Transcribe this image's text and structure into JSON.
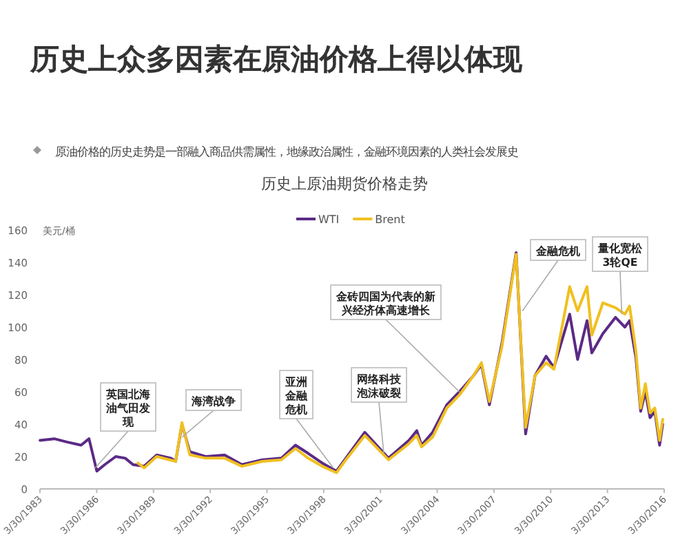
{
  "chart_data": {
    "type": "line",
    "title": "历史上众多因素在原油价格上得以体现",
    "subtitle": "原油价格的历史走势是一部融入商品供需属性，地缘政治属性，金融环境因素的人类社会发展史",
    "ylabel": "美元/桶",
    "legend": "top",
    "xlim": [
      "1983-03-30",
      "2016-03-30"
    ],
    "xticks": [
      {
        "value": "1983-03-30",
        "label": "3/30/1983"
      },
      {
        "value": "1986-03-30",
        "label": "3/30/1986"
      },
      {
        "value": "1989-03-30",
        "label": "3/30/1989"
      },
      {
        "value": "1992-03-30",
        "label": "3/30/1992"
      },
      {
        "value": "1995-03-30",
        "label": "3/30/1995"
      },
      {
        "value": "1998-03-30",
        "label": "3/30/1998"
      },
      {
        "value": "2001-03-30",
        "label": "3/30/2001"
      },
      {
        "value": "2004-03-30",
        "label": "3/30/2004"
      },
      {
        "value": "2007-03-30",
        "label": "3/30/2007"
      },
      {
        "value": "2010-03-30",
        "label": "3/30/2010"
      },
      {
        "value": "2013-03-30",
        "label": "3/30/2013"
      },
      {
        "value": "2016-03-30",
        "label": "3/30/2016"
      }
    ],
    "ylim": [
      0,
      160
    ],
    "yticks": [
      0,
      20,
      40,
      60,
      80,
      100,
      120,
      140,
      160
    ],
    "series": [
      {
        "name": "WTI",
        "color": "#5b2a86",
        "x": [
          "1983-04",
          "1984-01",
          "1984-09",
          "1985-06",
          "1985-11",
          "1986-04",
          "1986-09",
          "1987-04",
          "1987-10",
          "1988-03",
          "1988-10",
          "1989-06",
          "1990-03",
          "1990-06",
          "1990-10",
          "1991-03",
          "1992-01",
          "1993-01",
          "1993-12",
          "1995-01",
          "1996-01",
          "1996-10",
          "1997-06",
          "1998-03",
          "1998-12",
          "1999-06",
          "2000-06",
          "2001-09",
          "2002-10",
          "2003-03",
          "2003-06",
          "2004-01",
          "2004-10",
          "2005-06",
          "2006-03",
          "2006-08",
          "2007-01",
          "2007-09",
          "2008-06",
          "2008-12",
          "2009-06",
          "2010-01",
          "2010-06",
          "2011-04",
          "2011-09",
          "2012-03",
          "2012-06",
          "2013-01",
          "2013-09",
          "2014-03",
          "2014-06",
          "2014-10",
          "2015-01",
          "2015-04",
          "2015-07",
          "2015-10",
          "2016-01",
          "2016-03"
        ],
        "values": [
          30,
          31,
          29,
          27,
          31,
          11,
          15,
          20,
          19,
          15,
          14,
          21,
          19,
          17,
          40,
          23,
          20,
          21,
          15,
          18,
          19,
          27,
          22,
          16,
          11,
          19,
          35,
          19,
          30,
          36,
          27,
          35,
          52,
          60,
          70,
          77,
          52,
          90,
          146,
          34,
          70,
          82,
          75,
          108,
          80,
          104,
          84,
          96,
          106,
          100,
          104,
          81,
          48,
          60,
          44,
          48,
          27,
          40
        ]
      },
      {
        "name": "Brent",
        "color": "#f0c020",
        "x": [
          "1988-06",
          "1988-10",
          "1989-06",
          "1990-06",
          "1990-10",
          "1991-03",
          "1992-01",
          "1993-01",
          "1993-12",
          "1995-01",
          "1996-01",
          "1996-10",
          "1997-06",
          "1998-03",
          "1998-12",
          "1999-06",
          "2000-06",
          "2001-09",
          "2002-10",
          "2003-03",
          "2003-06",
          "2004-01",
          "2004-10",
          "2005-06",
          "2006-03",
          "2006-08",
          "2007-01",
          "2007-09",
          "2008-06",
          "2008-12",
          "2009-06",
          "2010-01",
          "2010-06",
          "2011-04",
          "2011-09",
          "2012-03",
          "2012-06",
          "2013-01",
          "2013-09",
          "2014-03",
          "2014-06",
          "2014-10",
          "2015-01",
          "2015-04",
          "2015-07",
          "2015-10",
          "2016-01",
          "2016-03"
        ],
        "values": [
          16,
          13,
          20,
          17,
          41,
          21,
          19,
          19,
          14,
          17,
          18,
          25,
          19,
          14,
          10,
          18,
          33,
          18,
          28,
          33,
          26,
          32,
          50,
          58,
          70,
          78,
          54,
          88,
          145,
          38,
          70,
          78,
          74,
          125,
          110,
          125,
          95,
          115,
          112,
          108,
          113,
          85,
          50,
          65,
          47,
          50,
          30,
          43
        ]
      }
    ],
    "annotations": [
      "历史上原油期货价格走势",
      {
        "text": "英国北海油气田发现",
        "x": "1986-03",
        "y": 13
      },
      {
        "text": "海湾战争",
        "x": "1990-10",
        "y": 32
      },
      {
        "text": "亚洲金融危机",
        "x": "1998-10",
        "y": 13
      },
      {
        "text": "网络科技泡沫破裂",
        "x": "2001-06",
        "y": 22
      },
      {
        "text": "金砖四国为代表的新兴经济体高速增长",
        "x": "2005-06",
        "y": 60
      },
      {
        "text": "金融危机",
        "x": "2008-10",
        "y": 110
      },
      {
        "text": "量化宽松3轮QE",
        "x": "2014-01",
        "y": 108
      }
    ]
  }
}
